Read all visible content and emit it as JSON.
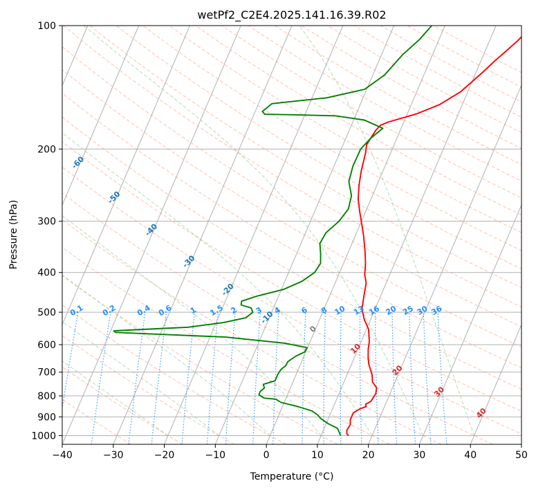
{
  "chart_data": {
    "type": "line",
    "title": "wetPf2_C2E4.2025.141.16.39.R02",
    "xlabel": "Temperature (°C)",
    "ylabel": "Pressure (hPa)",
    "xlim": [
      -40,
      50
    ],
    "ylim": [
      1050,
      100
    ],
    "y_scale": "log",
    "xticks": [
      "−40",
      "−30",
      "−20",
      "−10",
      "0",
      "10",
      "20",
      "30",
      "40",
      "50"
    ],
    "yticks": [
      "100",
      "200",
      "300",
      "400",
      "500",
      "600",
      "700",
      "800",
      "900",
      "1000"
    ],
    "grid": true,
    "colors": {
      "temperature": "#ff0000",
      "dewpoint": "#008000",
      "mixing_ratio_lines": "#1f8fff",
      "isotherm_labels": "#1f77b4",
      "dry_adiabats": "#ff8c69",
      "moist_adiabats": "#66bb66",
      "freezing_label": "#808080",
      "warm_isotherm_labels": "#d62728"
    },
    "series": [
      {
        "role": "temperature",
        "points": [
          [
            15.4,
            1000
          ],
          [
            14.9,
            990
          ],
          [
            14.6,
            970
          ],
          [
            14.8,
            940
          ],
          [
            14.4,
            915
          ],
          [
            14.4,
            880
          ],
          [
            15.4,
            860
          ],
          [
            16.4,
            850
          ],
          [
            16.1,
            838
          ],
          [
            16.9,
            825
          ],
          [
            17.2,
            790
          ],
          [
            16.9,
            765
          ],
          [
            15.6,
            740
          ],
          [
            14.9,
            710
          ],
          [
            13.4,
            670
          ],
          [
            12.7,
            645
          ],
          [
            12.0,
            615
          ],
          [
            11.6,
            590
          ],
          [
            10.4,
            550
          ],
          [
            8.7,
            520
          ],
          [
            7.4,
            490
          ],
          [
            6.8,
            460
          ],
          [
            6.1,
            425
          ],
          [
            5.1,
            405
          ],
          [
            4.3,
            380
          ],
          [
            3.2,
            355
          ],
          [
            1.6,
            325
          ],
          [
            0.3,
            305
          ],
          [
            -1.1,
            285
          ],
          [
            -2.5,
            265
          ],
          [
            -3.5,
            245
          ],
          [
            -4.3,
            225
          ],
          [
            -4.9,
            205
          ],
          [
            -5.4,
            195
          ],
          [
            -4.8,
            180
          ],
          [
            -4.3,
            175
          ],
          [
            -3.1,
            172
          ],
          [
            1.9,
            164
          ],
          [
            5.5,
            156
          ],
          [
            8.6,
            145
          ],
          [
            11.3,
            130
          ],
          [
            12.7,
            122
          ],
          [
            14.2,
            115
          ],
          [
            15.5,
            109
          ],
          [
            16.4,
            104
          ],
          [
            16.9,
            100
          ]
        ]
      },
      {
        "role": "dewpoint",
        "points": [
          [
            13.8,
            1000
          ],
          [
            13.4,
            985
          ],
          [
            12.6,
            960
          ],
          [
            10.4,
            935
          ],
          [
            8.6,
            910
          ],
          [
            7.6,
            890
          ],
          [
            6.1,
            870
          ],
          [
            3.1,
            850
          ],
          [
            -0.6,
            830
          ],
          [
            -1.9,
            815
          ],
          [
            -4.3,
            810
          ],
          [
            -5.6,
            795
          ],
          [
            -5.6,
            780
          ],
          [
            -5.1,
            765
          ],
          [
            -5.6,
            750
          ],
          [
            -4.6,
            742
          ],
          [
            -3.6,
            735
          ],
          [
            -3.6,
            710
          ],
          [
            -3.4,
            690
          ],
          [
            -2.8,
            675
          ],
          [
            -2.7,
            660
          ],
          [
            -1.6,
            640
          ],
          [
            -0.2,
            625
          ],
          [
            -0.1,
            610
          ],
          [
            -4.8,
            595
          ],
          [
            -16.9,
            575
          ],
          [
            -38.9,
            560
          ],
          [
            -39.4,
            555
          ],
          [
            -25.1,
            544
          ],
          [
            -18.6,
            530
          ],
          [
            -14.6,
            516
          ],
          [
            -13.7,
            500
          ],
          [
            -14.4,
            488
          ],
          [
            -16.6,
            480
          ],
          [
            -16.8,
            470
          ],
          [
            -14.3,
            457
          ],
          [
            -9.6,
            440
          ],
          [
            -6.6,
            420
          ],
          [
            -4.9,
            400
          ],
          [
            -4.5,
            380
          ],
          [
            -5.3,
            360
          ],
          [
            -6.3,
            340
          ],
          [
            -6.0,
            320
          ],
          [
            -4.4,
            300
          ],
          [
            -3.6,
            280
          ],
          [
            -4.1,
            260
          ],
          [
            -5.8,
            240
          ],
          [
            -6.3,
            220
          ],
          [
            -6.2,
            200
          ],
          [
            -5.1,
            188
          ],
          [
            -3.6,
            178
          ],
          [
            -7.9,
            170
          ],
          [
            -13.8,
            166
          ],
          [
            -20.1,
            165.2
          ],
          [
            -27.9,
            164.5
          ],
          [
            -28.6,
            162
          ],
          [
            -27.4,
            155
          ],
          [
            -23.4,
            153
          ],
          [
            -17.1,
            150
          ],
          [
            -10.4,
            143
          ],
          [
            -7.7,
            132
          ],
          [
            -5.9,
            118
          ],
          [
            -3.8,
            108
          ],
          [
            -2.6,
            100
          ]
        ]
      }
    ],
    "mixing_ratio_labels": [
      "0.1",
      "0.2",
      "0.4",
      "0.6",
      "1",
      "1.5",
      "2",
      "3",
      "4",
      "6",
      "8",
      "10",
      "13",
      "16",
      "20",
      "25",
      "30",
      "36"
    ],
    "mixing_ratio_values": [
      0.1,
      0.2,
      0.4,
      0.6,
      1,
      1.5,
      2,
      3,
      4,
      6,
      8,
      10,
      13,
      16,
      20,
      25,
      30,
      36
    ],
    "isotherm_labels_cold": [
      "-100",
      "-90",
      "-80",
      "-70",
      "-60",
      "-50",
      "-40",
      "-30",
      "-20",
      "-10"
    ],
    "isotherm_labels_warm": [
      "0",
      "10",
      "20",
      "30",
      "40"
    ]
  }
}
